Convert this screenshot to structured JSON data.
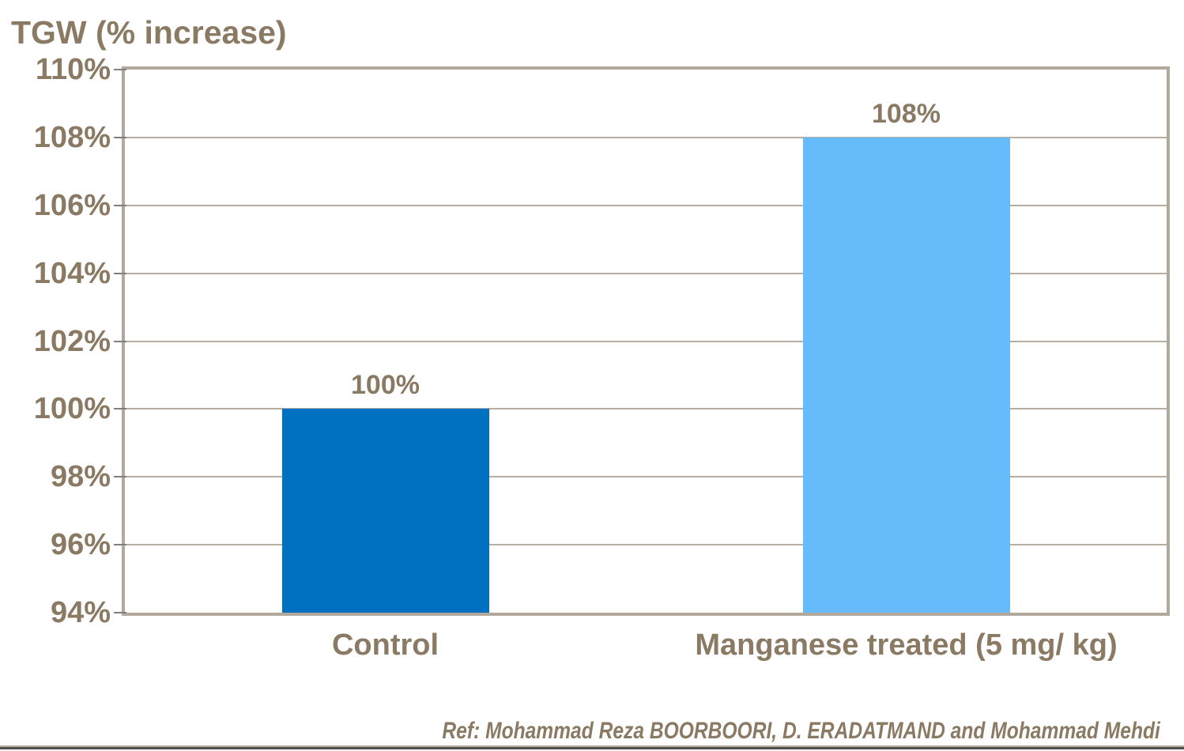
{
  "chart_data": {
    "type": "bar",
    "title": "TGW (% increase)",
    "categories": [
      "Control",
      "Manganese treated (5 mg/ kg)"
    ],
    "values": [
      100,
      108
    ],
    "value_labels": [
      "100%",
      "108%"
    ],
    "series": [
      {
        "name": "TGW",
        "values": [
          100,
          108
        ]
      }
    ],
    "bar_colors": [
      "#0070c0",
      "#66bbfb"
    ],
    "xlabel": "",
    "ylabel": "",
    "ylim": [
      94,
      110
    ],
    "ytick_step": 2,
    "ytick_labels": [
      "94%",
      "96%",
      "98%",
      "100%",
      "102%",
      "104%",
      "106%",
      "108%",
      "110%"
    ],
    "grid": true,
    "legend": false
  },
  "footer": {
    "reference": "Ref: Mohammad Reza BOORBOORI, D. ERADATMAND and Mohammad Mehdi"
  },
  "colors": {
    "text": "#8a7963",
    "grid": "#b7ada0",
    "frame": "#b2a89c",
    "tick_mark": "#7f7f7f",
    "bar_control": "#0070c0",
    "bar_treated": "#66bbfb"
  }
}
